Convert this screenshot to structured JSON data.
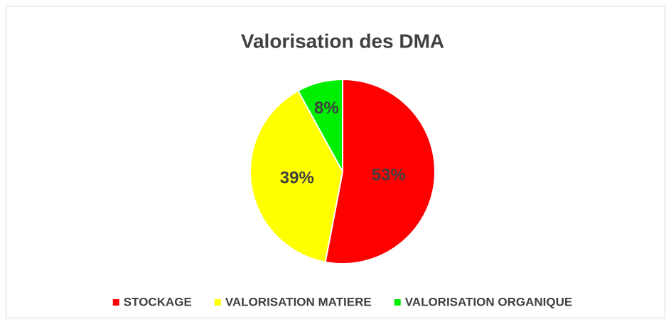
{
  "chart_data": {
    "type": "pie",
    "title": "Valorisation des DMA",
    "categories": [
      "STOCKAGE",
      "VALORISATION MATIERE",
      "VALORISATION ORGANIQUE"
    ],
    "values": [
      53,
      39,
      8
    ],
    "value_labels": [
      "53%",
      "39%",
      "8%"
    ],
    "colors": [
      "#ff0000",
      "#ffff00",
      "#00ee00"
    ],
    "legend": "bottom"
  }
}
